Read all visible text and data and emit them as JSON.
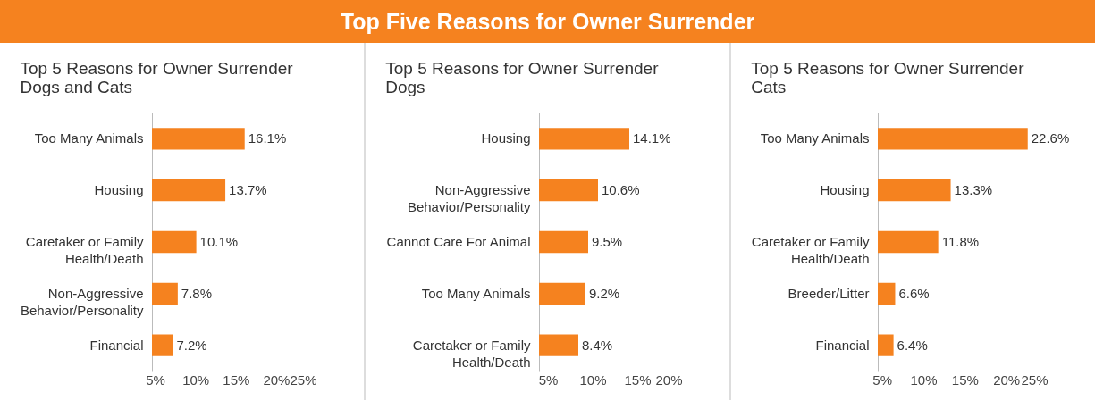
{
  "chart_data": [
    {
      "type": "other",
      "title": "Top Five Reasons for Owner Surrender"
    },
    {
      "type": "bar",
      "orientation": "horizontal",
      "title": "Top 5 Reasons for Owner Surrender",
      "subtitle": "Dogs and Cats",
      "categories": [
        "Too Many Animals",
        "Housing",
        "Caretaker or Family Health/Death",
        "Non-Aggressive Behavior/Personality",
        "Financial"
      ],
      "values": [
        16.1,
        13.7,
        10.1,
        7.8,
        7.2
      ],
      "value_labels": [
        "16.1%",
        "13.7%",
        "10.1%",
        "7.8%",
        "7.2%"
      ],
      "color": "#f5821f",
      "xlim": [
        4.6,
        25
      ],
      "xticks": [
        {
          "value": 5,
          "label": "5%"
        },
        {
          "value": 10,
          "label": "10%"
        },
        {
          "value": 15,
          "label": "15%"
        },
        {
          "value": 20,
          "label": "20%"
        },
        {
          "value": 25,
          "label": "25%"
        }
      ]
    },
    {
      "type": "bar",
      "orientation": "horizontal",
      "title": "Top 5 Reasons for Owner Surrender",
      "subtitle": "Dogs",
      "categories": [
        "Housing",
        "Non-Aggressive Behavior/Personality",
        "Cannot Care For Animal",
        "Too Many Animals",
        "Caretaker or Family Health/Death"
      ],
      "values": [
        14.1,
        10.6,
        9.5,
        9.2,
        8.4
      ],
      "value_labels": [
        "14.1%",
        "10.6%",
        "9.5%",
        "9.2%",
        "8.4%"
      ],
      "color": "#f5821f",
      "xlim": [
        4,
        20
      ],
      "xticks": [
        {
          "value": 5,
          "label": "5%"
        },
        {
          "value": 10,
          "label": "10%"
        },
        {
          "value": 15,
          "label": "15%"
        },
        {
          "value": 20,
          "label": "20%"
        }
      ]
    },
    {
      "type": "bar",
      "orientation": "horizontal",
      "title": "Top 5 Reasons for Owner Surrender",
      "subtitle": "Cats",
      "categories": [
        "Too Many Animals",
        "Housing",
        "Caretaker or Family Health/Death",
        "Breeder/Litter",
        "Financial"
      ],
      "values": [
        22.6,
        13.3,
        11.8,
        6.6,
        6.4
      ],
      "value_labels": [
        "22.6%",
        "13.3%",
        "11.8%",
        "6.6%",
        "6.4%"
      ],
      "color": "#f5821f",
      "xlim": [
        4.5,
        25
      ],
      "xticks": [
        {
          "value": 5,
          "label": "5%"
        },
        {
          "value": 10,
          "label": "10%"
        },
        {
          "value": 15,
          "label": "15%"
        },
        {
          "value": 20,
          "label": "20%"
        },
        {
          "value": 25,
          "label": "25%"
        }
      ]
    }
  ]
}
